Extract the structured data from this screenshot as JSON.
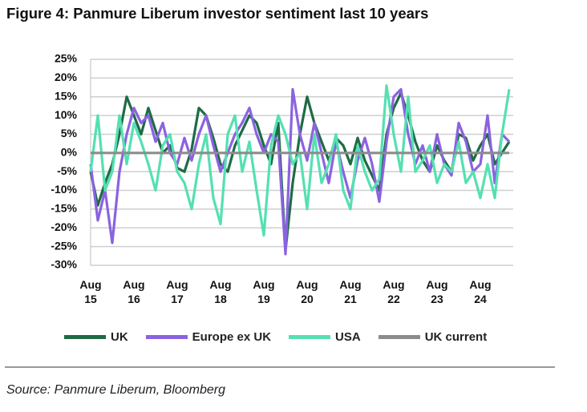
{
  "chart_data": {
    "type": "line",
    "title": "Figure 4: Panmure Liberum investor sentiment last 10 years",
    "source": "Source: Panmure Liberum, Bloomberg",
    "categories": [
      "Aug 15",
      null,
      null,
      null,
      null,
      null,
      "Aug 16",
      null,
      null,
      null,
      null,
      null,
      "Aug 17",
      null,
      null,
      null,
      null,
      null,
      "Aug 18",
      null,
      null,
      null,
      null,
      null,
      "Aug 19",
      null,
      null,
      null,
      null,
      null,
      "Aug 20",
      null,
      null,
      null,
      null,
      null,
      "Aug 21",
      null,
      null,
      null,
      null,
      null,
      "Aug 22",
      null,
      null,
      null,
      null,
      null,
      "Aug 23",
      null,
      null,
      null,
      null,
      null,
      "Aug 24",
      null,
      null,
      null,
      null
    ],
    "series": [
      {
        "name": "UK",
        "color": "#1e6b45",
        "values": [
          -5,
          -14,
          -8,
          -3,
          5,
          15,
          10,
          5,
          12,
          6,
          0,
          2,
          -4,
          -5,
          1,
          12,
          10,
          4,
          -3,
          -5,
          2,
          6,
          10,
          8,
          2,
          -3,
          8,
          -26,
          -8,
          5,
          15,
          8,
          3,
          -2,
          4,
          2,
          -3,
          4,
          -2,
          -6,
          -10,
          5,
          12,
          16,
          10,
          3,
          -2,
          -5,
          2,
          -2,
          -5,
          5,
          4,
          -2,
          2,
          5,
          -3,
          0,
          3
        ]
      },
      {
        "name": "Europe ex UK",
        "color": "#8a63e0",
        "values": [
          -3,
          -18,
          -10,
          -24,
          -5,
          5,
          12,
          8,
          10,
          3,
          8,
          0,
          -3,
          4,
          -2,
          5,
          10,
          2,
          -5,
          0,
          5,
          8,
          12,
          5,
          0,
          5,
          3,
          -27,
          17,
          5,
          -2,
          8,
          0,
          -8,
          3,
          -5,
          -12,
          -2,
          4,
          -3,
          -13,
          3,
          15,
          17,
          5,
          -3,
          2,
          -5,
          5,
          -3,
          -6,
          8,
          3,
          -5,
          -3,
          10,
          -8,
          5,
          3
        ]
      },
      {
        "name": "USA",
        "color": "#55e0b2",
        "values": [
          -5,
          10,
          -10,
          -5,
          10,
          -3,
          8,
          3,
          -3,
          -10,
          2,
          5,
          -5,
          -8,
          -15,
          -3,
          5,
          -12,
          -19,
          5,
          10,
          -5,
          3,
          -10,
          -22,
          2,
          10,
          5,
          -3,
          0,
          -15,
          5,
          -8,
          -3,
          5,
          -10,
          -15,
          2,
          -5,
          -10,
          -7,
          18,
          5,
          -5,
          15,
          -5,
          -2,
          2,
          -8,
          -3,
          -5,
          3,
          -8,
          -5,
          -12,
          -3,
          -12,
          5,
          17
        ]
      },
      {
        "name": "UK current",
        "color": "#8c8c8c",
        "values": [
          0,
          0,
          0,
          0,
          0,
          0,
          0,
          0,
          0,
          0,
          0,
          0,
          0,
          0,
          0,
          0,
          0,
          0,
          0,
          0,
          0,
          0,
          0,
          0,
          0,
          0,
          0,
          0,
          0,
          0,
          0,
          0,
          0,
          0,
          0,
          0,
          0,
          0,
          0,
          0,
          0,
          0,
          0,
          0,
          0,
          0,
          0,
          0,
          0,
          0,
          0,
          0,
          0,
          0,
          0,
          0,
          0,
          0,
          0
        ]
      }
    ],
    "ylim": [
      -30,
      25
    ],
    "yticks": [
      {
        "value": -30,
        "label": "-30%"
      },
      {
        "value": -25,
        "label": "-25%"
      },
      {
        "value": -20,
        "label": "-20%"
      },
      {
        "value": -15,
        "label": "-15%"
      },
      {
        "value": -10,
        "label": "-10%"
      },
      {
        "value": -5,
        "label": "-5%"
      },
      {
        "value": 0,
        "label": "0%"
      },
      {
        "value": 5,
        "label": "5%"
      },
      {
        "value": 10,
        "label": "10%"
      },
      {
        "value": 15,
        "label": "15%"
      },
      {
        "value": 20,
        "label": "20%"
      },
      {
        "value": 25,
        "label": "25%"
      }
    ],
    "grid": true,
    "legend": "bottom"
  }
}
